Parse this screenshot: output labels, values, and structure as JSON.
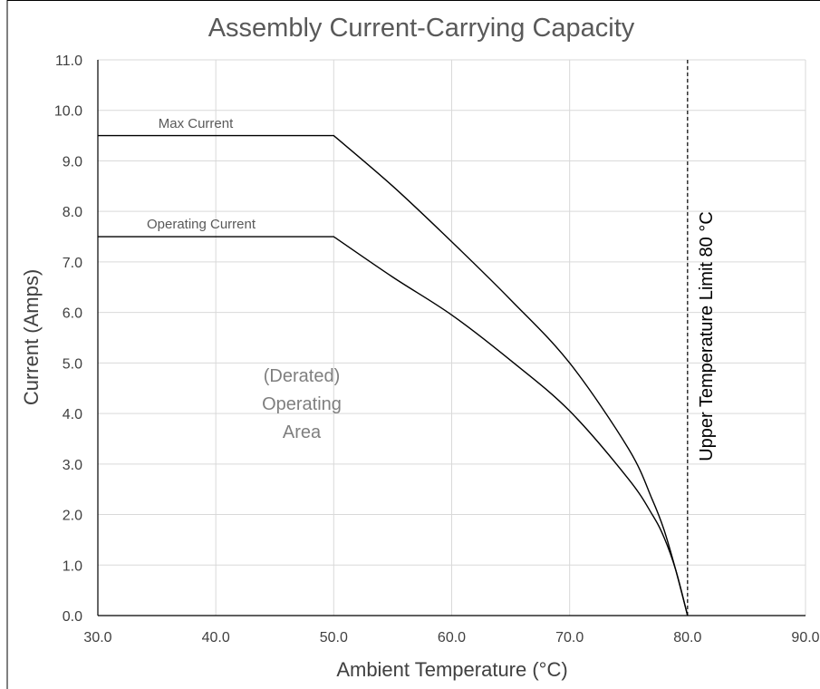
{
  "chart_data": {
    "type": "line",
    "title": "Assembly Current-Carrying Capacity",
    "xlabel": "Ambient Temperature (°C)",
    "ylabel": "Current (Amps)",
    "xlim": [
      30,
      90
    ],
    "ylim": [
      0,
      11
    ],
    "x_ticks": [
      30,
      40,
      50,
      60,
      70,
      80,
      90
    ],
    "x_tick_labels": [
      "30.0",
      "40.0",
      "50.0",
      "60.0",
      "70.0",
      "80.0",
      "90.0"
    ],
    "y_ticks": [
      0,
      1,
      2,
      3,
      4,
      5,
      6,
      7,
      8,
      9,
      10,
      11
    ],
    "y_tick_labels": [
      "0.0",
      "1.0",
      "2.0",
      "3.0",
      "4.0",
      "5.0",
      "6.0",
      "7.0",
      "8.0",
      "9.0",
      "10.0",
      "11.0"
    ],
    "grid": true,
    "series": [
      {
        "name": "Max Current",
        "x": [
          30,
          50,
          55,
          60,
          65,
          70,
          75,
          77,
          78,
          79,
          80
        ],
        "y": [
          9.5,
          9.5,
          8.5,
          7.4,
          6.25,
          5.0,
          3.3,
          2.3,
          1.7,
          0.9,
          0
        ]
      },
      {
        "name": "Operating Current",
        "x": [
          30,
          50,
          55,
          60,
          65,
          70,
          75,
          77,
          78,
          79,
          80
        ],
        "y": [
          7.5,
          7.5,
          6.7,
          5.95,
          5.05,
          4.05,
          2.7,
          2.0,
          1.55,
          0.9,
          0
        ]
      }
    ],
    "reference_line": {
      "x": 80,
      "style": "dashed",
      "label": "Upper Temperature Limit 80 °C"
    },
    "annotations": [
      {
        "text": "(Derated)"
      },
      {
        "text": "Operating"
      },
      {
        "text": "Area"
      }
    ]
  }
}
